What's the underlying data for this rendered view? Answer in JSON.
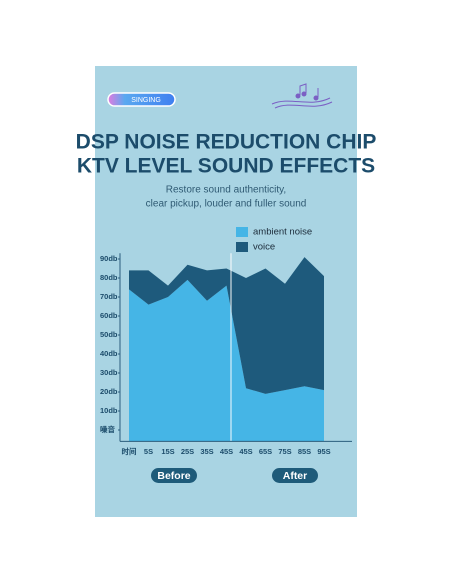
{
  "badge": "SINGING",
  "headline": [
    "DSP NOISE REDUCTION CHIP",
    "KTV LEVEL SOUND EFFECTS"
  ],
  "subtitle": [
    "Restore sound authenticity,",
    "clear pickup, louder and fuller sound"
  ],
  "chart_data": {
    "type": "area",
    "categories": [
      "时间",
      "5S",
      "15S",
      "25S",
      "35S",
      "45S",
      "45S",
      "65S",
      "75S",
      "85S",
      "95S"
    ],
    "series": [
      {
        "name": "ambient noise",
        "color": "#45b5e6",
        "values": [
          74,
          66,
          70,
          79,
          68,
          76,
          22,
          19,
          21,
          23,
          21
        ]
      },
      {
        "name": "voice",
        "color": "#1e5a7c",
        "values": [
          10,
          18,
          6,
          8,
          16,
          9,
          58,
          66,
          56,
          68,
          60
        ]
      }
    ],
    "stacked": true,
    "ylim": [
      -6,
      93
    ],
    "yticks": [
      {
        "value": 0,
        "label": "噪音"
      },
      {
        "value": 10,
        "label": "10db"
      },
      {
        "value": 20,
        "label": "20db"
      },
      {
        "value": 30,
        "label": "30db"
      },
      {
        "value": 40,
        "label": "40db"
      },
      {
        "value": 50,
        "label": "50db"
      },
      {
        "value": 60,
        "label": "60db"
      },
      {
        "value": 70,
        "label": "70db"
      },
      {
        "value": 80,
        "label": "80db"
      },
      {
        "value": 90,
        "label": "90db"
      }
    ],
    "annotations": [
      "Before",
      "After"
    ]
  }
}
